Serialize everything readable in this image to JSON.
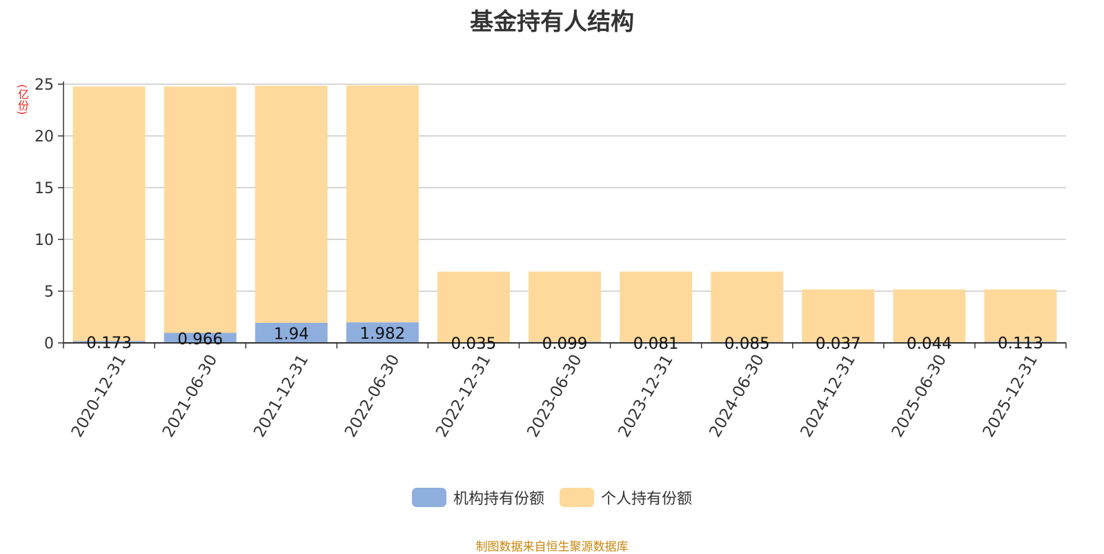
{
  "chart_data": {
    "type": "bar",
    "stacked": true,
    "title": "基金持有人结构",
    "unit": "亿份",
    "unit_label": "(亿份)",
    "categories": [
      "2020-12-31",
      "2021-06-30",
      "2021-12-31",
      "2022-06-30",
      "2022-12-31",
      "2023-06-30",
      "2023-12-31",
      "2024-06-30",
      "2024-12-31",
      "2025-06-30",
      "2025-12-31"
    ],
    "series": [
      {
        "name": "机构持有份额",
        "color": "#8eaedd",
        "values": [
          0.173,
          0.966,
          1.94,
          1.982,
          0.035,
          0.099,
          0.081,
          0.085,
          0.037,
          0.044,
          0.113
        ],
        "labels": [
          "0.173",
          "0.966",
          "1.94",
          "1.982",
          "0.035",
          "0.099",
          "0.081",
          "0.085",
          "0.037",
          "0.044",
          "0.113"
        ]
      },
      {
        "name": "个人持有份额",
        "color": "#fed99b",
        "values": [
          24.6,
          23.8,
          22.9,
          22.9,
          6.85,
          6.79,
          6.81,
          6.8,
          5.13,
          5.12,
          5.05
        ]
      }
    ],
    "ylim": [
      0,
      25
    ],
    "yticks": [
      "0",
      "5",
      "10",
      "15",
      "20",
      "25"
    ],
    "grid": true,
    "legend_position": "bottom"
  },
  "footer": {
    "source": "制图数据来自恒生聚源数据库"
  }
}
